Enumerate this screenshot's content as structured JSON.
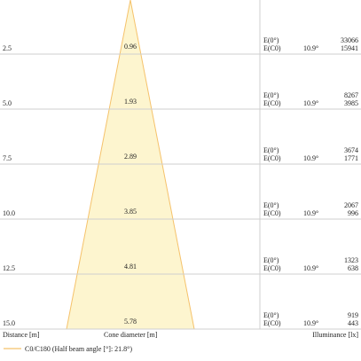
{
  "rows": [
    {
      "distance": "2.5",
      "diameter": "0.96",
      "e0_label": "E(0°)",
      "ec0_label": "E(C0)",
      "angle": "10.9°",
      "e0": "33066",
      "ec0": "15941"
    },
    {
      "distance": "5.0",
      "diameter": "1.93",
      "e0_label": "E(0°)",
      "ec0_label": "E(C0)",
      "angle": "10.9°",
      "e0": "8267",
      "ec0": "3985"
    },
    {
      "distance": "7.5",
      "diameter": "2.89",
      "e0_label": "E(0°)",
      "ec0_label": "E(C0)",
      "angle": "10.9°",
      "e0": "3674",
      "ec0": "1771"
    },
    {
      "distance": "10.0",
      "diameter": "3.85",
      "e0_label": "E(0°)",
      "ec0_label": "E(C0)",
      "angle": "10.9°",
      "e0": "2067",
      "ec0": "996"
    },
    {
      "distance": "12.5",
      "diameter": "4.81",
      "e0_label": "E(0°)",
      "ec0_label": "E(C0)",
      "angle": "10.9°",
      "e0": "1323",
      "ec0": "638"
    },
    {
      "distance": "15.0",
      "diameter": "5.78",
      "e0_label": "E(0°)",
      "ec0_label": "E(C0)",
      "angle": "10.9°",
      "e0": "919",
      "ec0": "443"
    }
  ],
  "footer": {
    "distance_label": "Distance [m]",
    "diameter_label": "Cone diameter [m]",
    "illuminance_label": "Illuminance [lx]"
  },
  "legend": {
    "label": "C0/C180 (Half beam angle [°]: 21.8°)"
  }
}
